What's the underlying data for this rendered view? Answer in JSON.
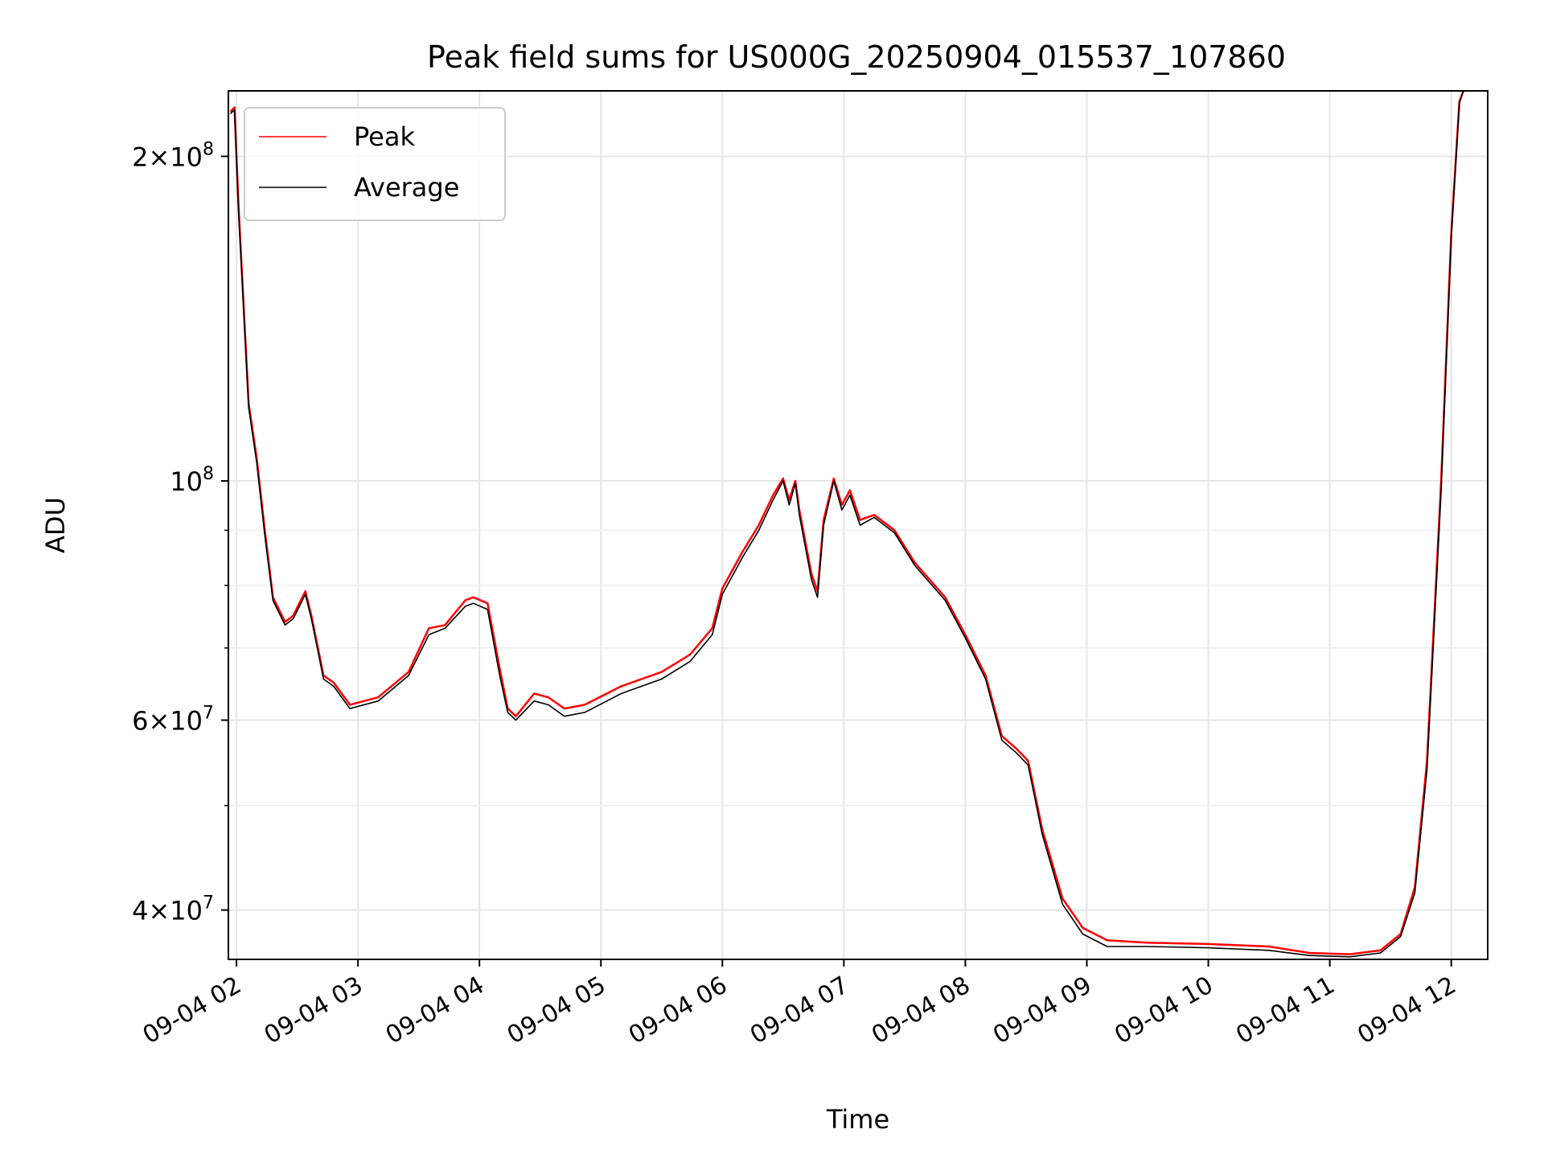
{
  "chart_data": {
    "type": "line",
    "title": "Peak field sums for US000G_20250904_015537_107860",
    "xlabel": "Time",
    "ylabel": "ADU",
    "yscale": "log",
    "ylim": [
      36000000,
      230000000
    ],
    "xlim": [
      "09-04 01:56",
      "09-04 12:18"
    ],
    "grid": true,
    "legend_position": "upper-left",
    "x_ticks": [
      {
        "t": "09-04 02:00",
        "label": "09-04 02"
      },
      {
        "t": "09-04 03:00",
        "label": "09-04 03"
      },
      {
        "t": "09-04 04:00",
        "label": "09-04 04"
      },
      {
        "t": "09-04 05:00",
        "label": "09-04 05"
      },
      {
        "t": "09-04 06:00",
        "label": "09-04 06"
      },
      {
        "t": "09-04 07:00",
        "label": "09-04 07"
      },
      {
        "t": "09-04 08:00",
        "label": "09-04 08"
      },
      {
        "t": "09-04 09:00",
        "label": "09-04 09"
      },
      {
        "t": "09-04 10:00",
        "label": "09-04 10"
      },
      {
        "t": "09-04 11:00",
        "label": "09-04 11"
      },
      {
        "t": "09-04 12:00",
        "label": "09-04 12"
      }
    ],
    "y_major_ticks": [
      {
        "value": 40000000,
        "mant": "4",
        "exp": "7"
      },
      {
        "value": 60000000,
        "mant": "6",
        "exp": "7"
      },
      {
        "value": 100000000,
        "mant": "",
        "exp": "8"
      },
      {
        "value": 200000000,
        "mant": "2",
        "exp": "8"
      }
    ],
    "y_minor_ticks": [
      50000000,
      70000000,
      80000000,
      90000000
    ],
    "series": [
      {
        "name": "Peak",
        "color": "#ff0000",
        "points": [
          [
            "09-04 01:57",
            220000000
          ],
          [
            "09-04 01:59",
            222000000
          ],
          [
            "09-04 02:01",
            180000000
          ],
          [
            "09-04 02:06",
            118000000
          ],
          [
            "09-04 02:10",
            105000000
          ],
          [
            "09-04 02:14",
            90000000
          ],
          [
            "09-04 02:18",
            78000000
          ],
          [
            "09-04 02:24",
            74000000
          ],
          [
            "09-04 02:28",
            75000000
          ],
          [
            "09-04 02:34",
            79000000
          ],
          [
            "09-04 02:37",
            75000000
          ],
          [
            "09-04 02:43",
            66000000
          ],
          [
            "09-04 02:48",
            65000000
          ],
          [
            "09-04 02:56",
            62000000
          ],
          [
            "09-04 03:10",
            63000000
          ],
          [
            "09-04 03:25",
            66500000
          ],
          [
            "09-04 03:35",
            73000000
          ],
          [
            "09-04 03:43",
            73500000
          ],
          [
            "09-04 03:53",
            77500000
          ],
          [
            "09-04 03:57",
            78000000
          ],
          [
            "09-04 04:04",
            77000000
          ],
          [
            "09-04 04:10",
            67000000
          ],
          [
            "09-04 04:14",
            61500000
          ],
          [
            "09-04 04:18",
            60500000
          ],
          [
            "09-04 04:27",
            63500000
          ],
          [
            "09-04 04:34",
            63000000
          ],
          [
            "09-04 04:42",
            61500000
          ],
          [
            "09-04 04:52",
            62000000
          ],
          [
            "09-04 05:10",
            64500000
          ],
          [
            "09-04 05:30",
            66500000
          ],
          [
            "09-04 05:44",
            69000000
          ],
          [
            "09-04 05:55",
            73000000
          ],
          [
            "09-04 06:00",
            79500000
          ],
          [
            "09-04 06:10",
            86000000
          ],
          [
            "09-04 06:18",
            91000000
          ],
          [
            "09-04 06:25",
            97000000
          ],
          [
            "09-04 06:30",
            100500000
          ],
          [
            "09-04 06:33",
            96000000
          ],
          [
            "09-04 06:36",
            100000000
          ],
          [
            "09-04 06:38",
            94000000
          ],
          [
            "09-04 06:44",
            82000000
          ],
          [
            "09-04 06:47",
            79000000
          ],
          [
            "09-04 06:50",
            92000000
          ],
          [
            "09-04 06:55",
            100500000
          ],
          [
            "09-04 06:59",
            95000000
          ],
          [
            "09-04 07:03",
            98000000
          ],
          [
            "09-04 07:08",
            92000000
          ],
          [
            "09-04 07:15",
            93000000
          ],
          [
            "09-04 07:25",
            90000000
          ],
          [
            "09-04 07:35",
            84000000
          ],
          [
            "09-04 07:50",
            78000000
          ],
          [
            "09-04 08:00",
            72000000
          ],
          [
            "09-04 08:10",
            66000000
          ],
          [
            "09-04 08:18",
            58000000
          ],
          [
            "09-04 08:25",
            56500000
          ],
          [
            "09-04 08:31",
            55000000
          ],
          [
            "09-04 08:38",
            47500000
          ],
          [
            "09-04 08:48",
            41000000
          ],
          [
            "09-04 08:58",
            38500000
          ],
          [
            "09-04 09:10",
            37500000
          ],
          [
            "09-04 09:30",
            37300000
          ],
          [
            "09-04 10:00",
            37200000
          ],
          [
            "09-04 10:30",
            37000000
          ],
          [
            "09-04 10:50",
            36500000
          ],
          [
            "09-04 11:10",
            36400000
          ],
          [
            "09-04 11:25",
            36700000
          ],
          [
            "09-04 11:35",
            38000000
          ],
          [
            "09-04 11:42",
            42000000
          ],
          [
            "09-04 11:48",
            55000000
          ],
          [
            "09-04 11:55",
            100000000
          ],
          [
            "09-04 12:00",
            170000000
          ],
          [
            "09-04 12:04",
            225000000
          ],
          [
            "09-04 12:06",
            230000000
          ]
        ]
      },
      {
        "name": "Average",
        "color": "#000000",
        "points": [
          [
            "09-04 01:57",
            219000000
          ],
          [
            "09-04 01:59",
            221000000
          ],
          [
            "09-04 02:01",
            178000000
          ],
          [
            "09-04 02:06",
            117000000
          ],
          [
            "09-04 02:10",
            104000000
          ],
          [
            "09-04 02:14",
            89000000
          ],
          [
            "09-04 02:18",
            77500000
          ],
          [
            "09-04 02:24",
            73500000
          ],
          [
            "09-04 02:28",
            74500000
          ],
          [
            "09-04 02:34",
            78500000
          ],
          [
            "09-04 02:37",
            74500000
          ],
          [
            "09-04 02:43",
            65500000
          ],
          [
            "09-04 02:48",
            64500000
          ],
          [
            "09-04 02:56",
            61500000
          ],
          [
            "09-04 03:10",
            62500000
          ],
          [
            "09-04 03:25",
            66000000
          ],
          [
            "09-04 03:35",
            72000000
          ],
          [
            "09-04 03:43",
            73000000
          ],
          [
            "09-04 03:53",
            76500000
          ],
          [
            "09-04 03:57",
            77000000
          ],
          [
            "09-04 04:04",
            76000000
          ],
          [
            "09-04 04:10",
            66000000
          ],
          [
            "09-04 04:14",
            61000000
          ],
          [
            "09-04 04:18",
            60000000
          ],
          [
            "09-04 04:27",
            62500000
          ],
          [
            "09-04 04:34",
            62000000
          ],
          [
            "09-04 04:42",
            60500000
          ],
          [
            "09-04 04:52",
            61000000
          ],
          [
            "09-04 05:10",
            63500000
          ],
          [
            "09-04 05:30",
            65500000
          ],
          [
            "09-04 05:44",
            68000000
          ],
          [
            "09-04 05:55",
            72000000
          ],
          [
            "09-04 06:00",
            78500000
          ],
          [
            "09-04 06:10",
            85000000
          ],
          [
            "09-04 06:18",
            90000000
          ],
          [
            "09-04 06:25",
            96000000
          ],
          [
            "09-04 06:30",
            100000000
          ],
          [
            "09-04 06:33",
            95000000
          ],
          [
            "09-04 06:36",
            99500000
          ],
          [
            "09-04 06:38",
            93000000
          ],
          [
            "09-04 06:44",
            81000000
          ],
          [
            "09-04 06:47",
            78000000
          ],
          [
            "09-04 06:50",
            91000000
          ],
          [
            "09-04 06:55",
            100000000
          ],
          [
            "09-04 06:59",
            94000000
          ],
          [
            "09-04 07:03",
            97000000
          ],
          [
            "09-04 07:08",
            91000000
          ],
          [
            "09-04 07:15",
            92500000
          ],
          [
            "09-04 07:25",
            89500000
          ],
          [
            "09-04 07:35",
            83500000
          ],
          [
            "09-04 07:50",
            77500000
          ],
          [
            "09-04 08:00",
            71500000
          ],
          [
            "09-04 08:10",
            65500000
          ],
          [
            "09-04 08:18",
            57500000
          ],
          [
            "09-04 08:25",
            56000000
          ],
          [
            "09-04 08:31",
            54500000
          ],
          [
            "09-04 08:38",
            47000000
          ],
          [
            "09-04 08:48",
            40500000
          ],
          [
            "09-04 08:58",
            38000000
          ],
          [
            "09-04 09:10",
            37000000
          ],
          [
            "09-04 09:30",
            37000000
          ],
          [
            "09-04 10:00",
            36900000
          ],
          [
            "09-04 10:30",
            36700000
          ],
          [
            "09-04 10:50",
            36300000
          ],
          [
            "09-04 11:10",
            36200000
          ],
          [
            "09-04 11:25",
            36500000
          ],
          [
            "09-04 11:35",
            37800000
          ],
          [
            "09-04 11:42",
            41500000
          ],
          [
            "09-04 11:48",
            54000000
          ],
          [
            "09-04 11:55",
            98000000
          ],
          [
            "09-04 12:00",
            168000000
          ],
          [
            "09-04 12:04",
            224000000
          ],
          [
            "09-04 12:06",
            230000000
          ]
        ]
      }
    ]
  }
}
